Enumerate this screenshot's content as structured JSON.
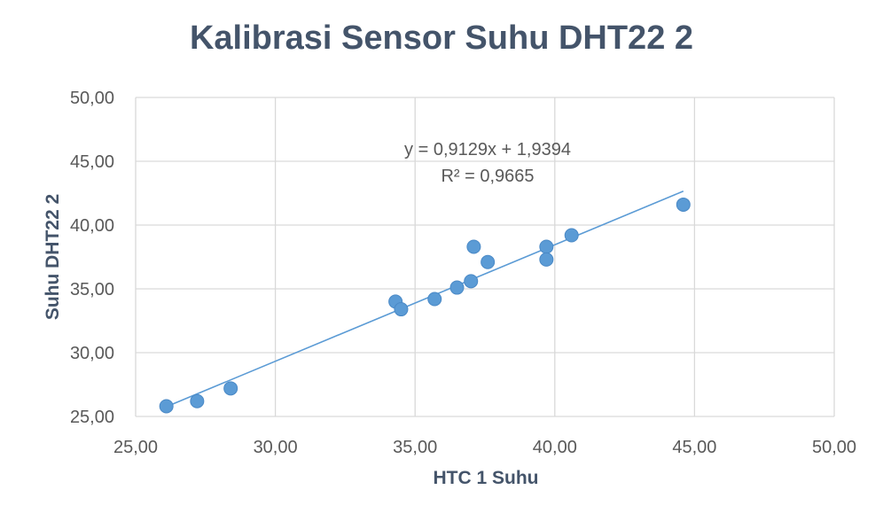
{
  "chart_data": {
    "type": "scatter",
    "title": "Kalibrasi Sensor Suhu DHT22 2",
    "xlabel": "HTC 1 Suhu",
    "ylabel": "Suhu DHT22 2",
    "xlim": [
      25,
      50
    ],
    "ylim": [
      25,
      50
    ],
    "x_ticks": [
      "25,00",
      "30,00",
      "35,00",
      "40,00",
      "45,00",
      "50,00"
    ],
    "y_ticks": [
      "25,00",
      "30,00",
      "35,00",
      "40,00",
      "45,00",
      "50,00"
    ],
    "grid": true,
    "legend": "none",
    "series": [
      {
        "color": "#5B9BD5",
        "points": [
          {
            "x": 26.1,
            "y": 25.8
          },
          {
            "x": 27.2,
            "y": 26.2
          },
          {
            "x": 28.4,
            "y": 27.2
          },
          {
            "x": 34.3,
            "y": 34.0
          },
          {
            "x": 34.5,
            "y": 33.4
          },
          {
            "x": 35.7,
            "y": 34.2
          },
          {
            "x": 36.5,
            "y": 35.1
          },
          {
            "x": 37.0,
            "y": 35.6
          },
          {
            "x": 37.1,
            "y": 38.3
          },
          {
            "x": 37.6,
            "y": 37.1
          },
          {
            "x": 39.7,
            "y": 38.3
          },
          {
            "x": 39.7,
            "y": 37.3
          },
          {
            "x": 40.6,
            "y": 39.2
          },
          {
            "x": 44.6,
            "y": 41.6
          }
        ]
      }
    ],
    "trendline": {
      "type": "linear",
      "slope": 0.9129,
      "intercept": 1.9394,
      "x_range": [
        26.1,
        44.6
      ],
      "color": "#5B9BD5",
      "equation_label": "y = 0,9129x + 1,9394",
      "r2_label": "R² = 0,9665"
    },
    "colors": {
      "axis_text": "#595959",
      "title_text": "#44546A",
      "grid": "#D9D9D9"
    }
  }
}
